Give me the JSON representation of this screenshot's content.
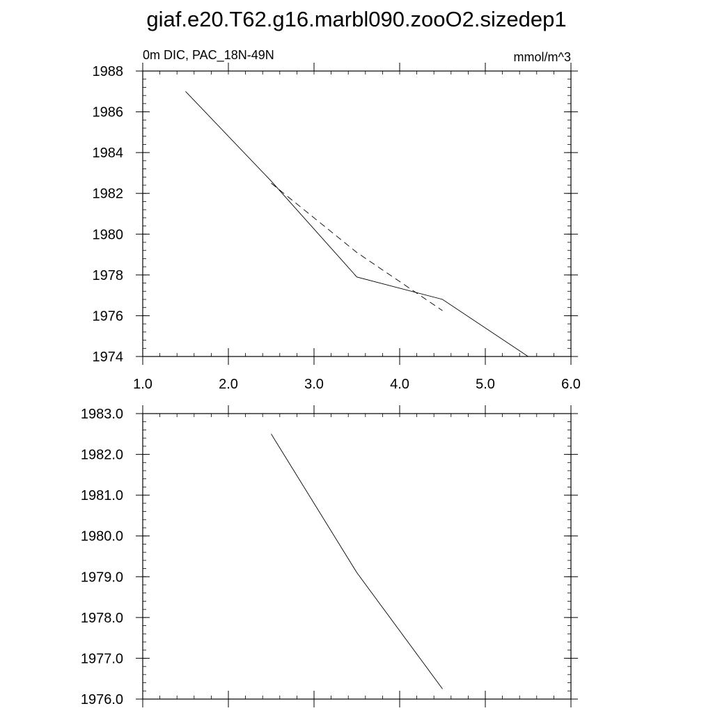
{
  "figure": {
    "title": "giaf.e20.T62.g16.marbl090.zooO2.sizedep1"
  },
  "chart_data": [
    {
      "type": "line",
      "title_left": "0m DIC, PAC_18N-49N",
      "title_right": "mmol/m^3",
      "xlim": [
        1.0,
        6.0
      ],
      "ylim": [
        1974,
        1988
      ],
      "x_ticks": [
        1.0,
        2.0,
        3.0,
        4.0,
        5.0,
        6.0
      ],
      "x_tick_labels": [
        "1.0",
        "2.0",
        "3.0",
        "4.0",
        "5.0",
        "6.0"
      ],
      "y_ticks": [
        1974,
        1976,
        1978,
        1980,
        1982,
        1984,
        1986,
        1988
      ],
      "y_tick_labels": [
        "1974",
        "1976",
        "1978",
        "1980",
        "1982",
        "1984",
        "1986",
        "1988"
      ],
      "grid": false,
      "series": [
        {
          "style": "solid",
          "color": "#000000",
          "x": [
            1.5,
            2.5,
            3.5,
            4.5,
            5.5
          ],
          "y": [
            1987.0,
            1982.6,
            1977.9,
            1976.8,
            1974.0
          ]
        },
        {
          "style": "dashed",
          "color": "#000000",
          "x": [
            2.5,
            3.5,
            4.5
          ],
          "y": [
            1982.5,
            1979.1,
            1976.25
          ]
        }
      ]
    },
    {
      "type": "line",
      "title_left": "",
      "title_right": "",
      "xlim": [
        1.0,
        6.0
      ],
      "ylim": [
        1976.0,
        1983.0
      ],
      "x_ticks": [
        1.0,
        2.0,
        3.0,
        4.0,
        5.0,
        6.0
      ],
      "x_tick_labels": [],
      "y_ticks": [
        1976.0,
        1977.0,
        1978.0,
        1979.0,
        1980.0,
        1981.0,
        1982.0,
        1983.0
      ],
      "y_tick_labels": [
        "1976.0",
        "1977.0",
        "1978.0",
        "1979.0",
        "1980.0",
        "1981.0",
        "1982.0",
        "1983.0"
      ],
      "grid": false,
      "series": [
        {
          "style": "solid",
          "color": "#000000",
          "x": [
            2.5,
            3.5,
            4.5
          ],
          "y": [
            1982.5,
            1979.1,
            1976.25
          ]
        }
      ]
    }
  ]
}
